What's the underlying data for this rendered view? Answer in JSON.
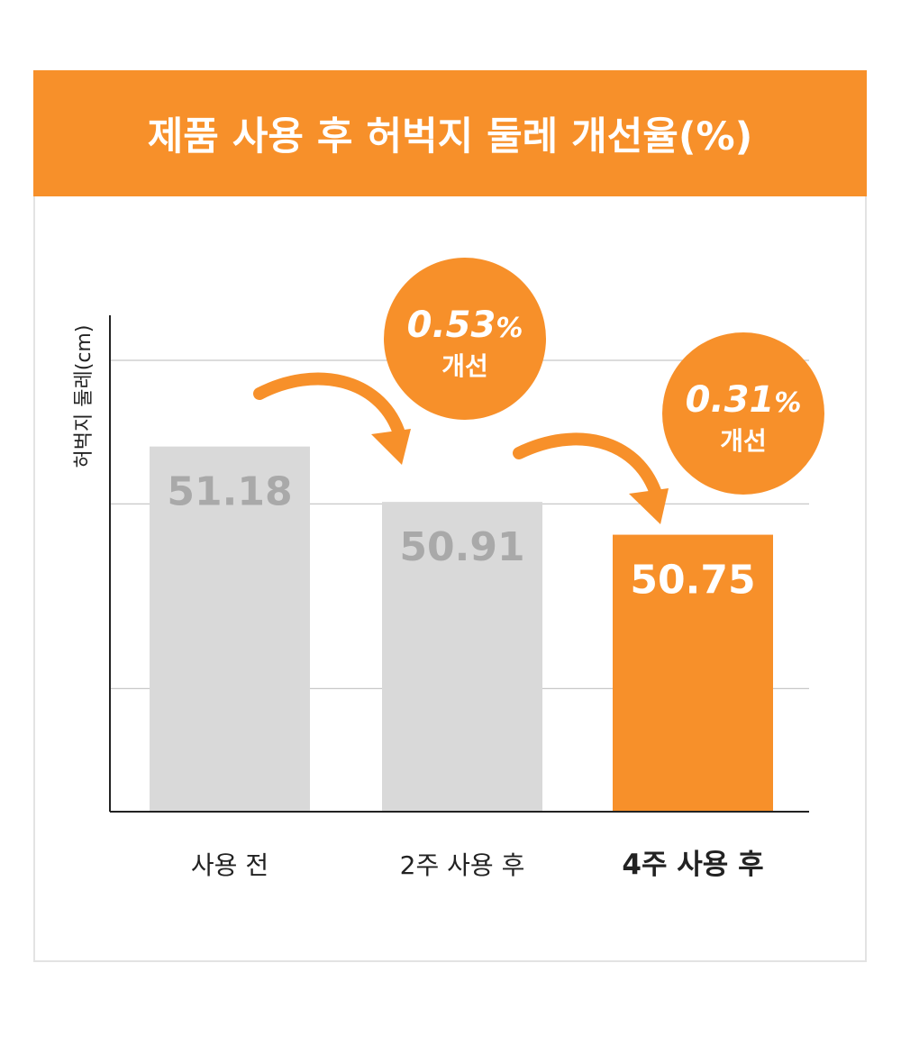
{
  "title": "제품 사용 후 허벅지 둘레 개선율(%)",
  "colors": {
    "accent": "#f7902a",
    "bar_default": "#d9d9d9",
    "label_on_gray": "#a9a9a9",
    "label_on_accent": "#ffffff",
    "grid": "#c8c8c8",
    "axis": "#222222"
  },
  "chart_data": {
    "type": "bar",
    "title": "제품 사용 후 허벅지 둘레 개선율(%)",
    "xlabel": "",
    "ylabel": "허벅지 둘레(cm)",
    "categories": [
      "사용 전",
      "2주 사용 후",
      "4주 사용 후"
    ],
    "values": [
      51.18,
      50.91,
      50.75
    ],
    "highlight_index": 2,
    "ylim": [
      49.4,
      51.6
    ],
    "grid": true,
    "gridlines": [
      50.0,
      50.9,
      51.6
    ],
    "annotations": [
      {
        "from": 0,
        "to": 1,
        "value": "0.53",
        "unit": "%",
        "label": "개선"
      },
      {
        "from": 1,
        "to": 2,
        "value": "0.31",
        "unit": "%",
        "label": "개선"
      }
    ]
  }
}
